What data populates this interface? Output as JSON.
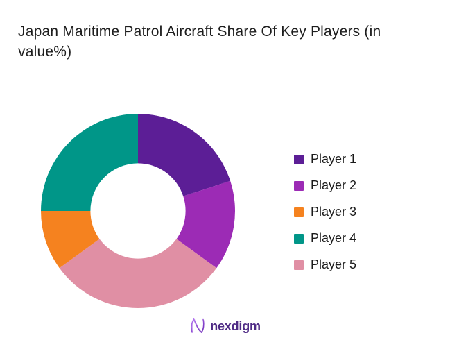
{
  "title": "Japan Maritime Patrol Aircraft Share Of Key Players (in value%)",
  "chart_data": {
    "type": "donut",
    "title": "Japan Maritime Patrol Aircraft Share Of Key Players (in value%)",
    "categories": [
      "Player 1",
      "Player 2",
      "Player 3",
      "Player 4",
      "Player 5"
    ],
    "values": [
      20,
      15,
      10,
      25,
      30
    ],
    "colors": [
      "#5C1E96",
      "#9C2BB5",
      "#F5821F",
      "#009688",
      "#E08FA4"
    ],
    "clockwise_order_from_top": [
      "Player 1",
      "Player 2",
      "Player 5",
      "Player 3",
      "Player 4"
    ],
    "start_angle_deg": 0,
    "inner_radius_ratio": 0.49,
    "legend_position": "right",
    "data_labels": "none",
    "background": "#ffffff"
  },
  "footer": {
    "brand": "nexdigm",
    "brand_color": "#4F2B85",
    "logo_mark": "nexdigm-n-wave-icon"
  }
}
